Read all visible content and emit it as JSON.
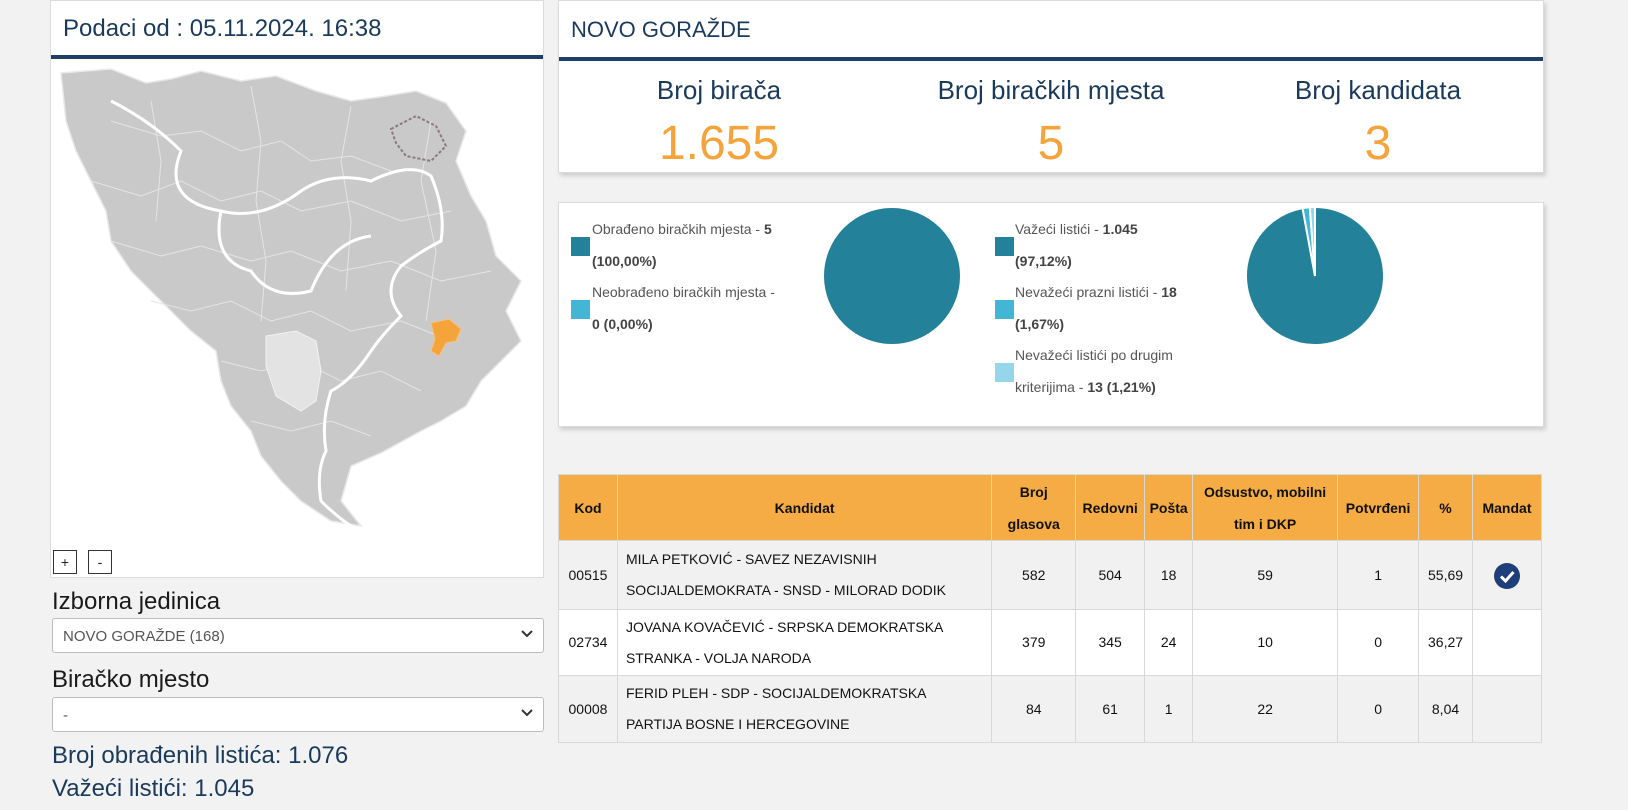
{
  "left": {
    "header": "Podaci od : 05.11.2024. 16:38",
    "zoom_in": "+",
    "zoom_out": "-",
    "izborna_label": "Izborna jedinica",
    "izborna_value": "NOVO GORAŽDE (168)",
    "biracko_label": "Biračko mjesto",
    "biracko_value": "-",
    "obradjeni_listici": "Broj obrađenih listića: 1.076",
    "vazeci_listici": "Važeći listići: 1.045"
  },
  "header": {
    "title": "NOVO GORAŽDE",
    "kpis": [
      {
        "label": "Broj birača",
        "value": "1.655"
      },
      {
        "label": "Broj biračkih mjesta",
        "value": "5"
      },
      {
        "label": "Broj kandidata",
        "value": "3"
      }
    ]
  },
  "colors": {
    "accent": "#f5a33b",
    "navy": "#1f3f66",
    "pie_main": "#23819a",
    "pie_secondary": "#43b5d5",
    "pie_tertiary": "#95d6ea",
    "table_header": "#f5ac45"
  },
  "pies": {
    "left": {
      "items": [
        {
          "text": "Obrađeno biračkih mjesta - ",
          "bold1": "5",
          "line2": "(100,00%)"
        },
        {
          "text": "Neobrađeno biračkih mjesta - ",
          "bold1": "",
          "line2": "0 (0,00%)"
        }
      ],
      "values": [
        100.0,
        0.0
      ]
    },
    "right": {
      "items": [
        {
          "text": "Važeći listići - ",
          "bold1": "1.045",
          "line2": "(97,12%)"
        },
        {
          "text": "Nevažeći prazni listići - ",
          "bold1": "18",
          "line2": "(1,67%)"
        },
        {
          "text": "Nevažeći listići po drugim",
          "bold1": "",
          "line2a": "kriterijima - ",
          "line2": "13 (1,21%)"
        }
      ],
      "values": [
        97.12,
        1.67,
        1.21
      ]
    }
  },
  "table": {
    "headers": [
      "Kod",
      "Kandidat",
      "Broj glasova",
      "Redovni",
      "Pošta",
      "Odsustvo, mobilni tim i DKP",
      "Potvrđeni",
      "%",
      "Mandat"
    ],
    "rows": [
      {
        "kod": "00515",
        "kandidat_l1": "MILA PETKOVIĆ - SAVEZ NEZAVISNIH",
        "kandidat_l2": "SOCIJALDEMOKRATA - SNSD - MILORAD DODIK",
        "glasova": "582",
        "redovni": "504",
        "posta": "18",
        "odsustvo": "59",
        "potvrdjeni": "1",
        "pct": "55,69",
        "mandat": true
      },
      {
        "kod": "02734",
        "kandidat_l1": "JOVANA KOVAČEVIĆ - SRPSKA DEMOKRATSKA",
        "kandidat_l2": "STRANKA - VOLJA NARODA",
        "glasova": "379",
        "redovni": "345",
        "posta": "24",
        "odsustvo": "10",
        "potvrdjeni": "0",
        "pct": "36,27",
        "mandat": false
      },
      {
        "kod": "00008",
        "kandidat_l1": "FERID PLEH - SDP - SOCIJALDEMOKRATSKA",
        "kandidat_l2": "PARTIJA BOSNE I HERCEGOVINE",
        "glasova": "84",
        "redovni": "61",
        "posta": "1",
        "odsustvo": "22",
        "potvrdjeni": "0",
        "pct": "8,04",
        "mandat": false
      }
    ]
  }
}
